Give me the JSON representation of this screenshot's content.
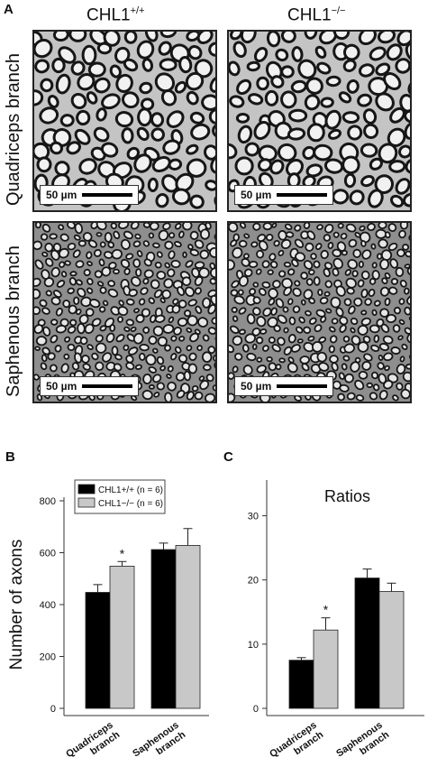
{
  "panels": {
    "a": "A",
    "b": "B",
    "c": "C"
  },
  "micrographs": {
    "col_wt": "CHL1",
    "col_wt_sup": "+/+",
    "col_ko": "CHL1",
    "col_ko_sup": "−/−",
    "row_top": "Quadriceps branch",
    "row_bottom": "Saphenous branch",
    "scale_label": "50 µm"
  },
  "chart_data": [
    {
      "type": "bar",
      "title": "",
      "ylabel": "Number of axons",
      "xlabel": "",
      "categories": [
        "Quadriceps branch",
        "Saphenous branch"
      ],
      "category_lines": [
        [
          "Quadriceps",
          "branch"
        ],
        [
          "Saphenous",
          "branch"
        ]
      ],
      "ylim": [
        0,
        800
      ],
      "yticks": [
        0,
        200,
        400,
        600,
        800
      ],
      "legend": {
        "position": "top-left",
        "entries": [
          "CHL1+/+ (n = 6)",
          "CHL1−/− (n = 6)"
        ]
      },
      "series": [
        {
          "name": "CHL1+/+ (n = 6)",
          "color": "#000000",
          "values": [
            447,
            612
          ],
          "errors": [
            30,
            25
          ]
        },
        {
          "name": "CHL1−/− (n = 6)",
          "color": "#c8c8c8",
          "values": [
            548,
            628
          ],
          "errors": [
            18,
            65
          ]
        }
      ],
      "annotations": [
        {
          "category": 0,
          "series": 1,
          "text": "*"
        }
      ]
    },
    {
      "type": "bar",
      "title": "Ratios",
      "ylabel": "",
      "xlabel": "",
      "categories": [
        "Quadriceps branch",
        "Saphenous branch"
      ],
      "category_lines": [
        [
          "Quadriceps",
          "branch"
        ],
        [
          "Saphenous",
          "branch"
        ]
      ],
      "ylim": [
        0,
        35
      ],
      "yticks": [
        0,
        10,
        20,
        30
      ],
      "series": [
        {
          "color": "#000000",
          "values": [
            7.5,
            20.3
          ],
          "errors": [
            0.4,
            1.4
          ]
        },
        {
          "color": "#c8c8c8",
          "values": [
            12.2,
            18.2
          ],
          "errors": [
            1.9,
            1.3
          ]
        }
      ],
      "annotations": [
        {
          "category": 0,
          "series": 1,
          "text": "*"
        }
      ]
    }
  ]
}
